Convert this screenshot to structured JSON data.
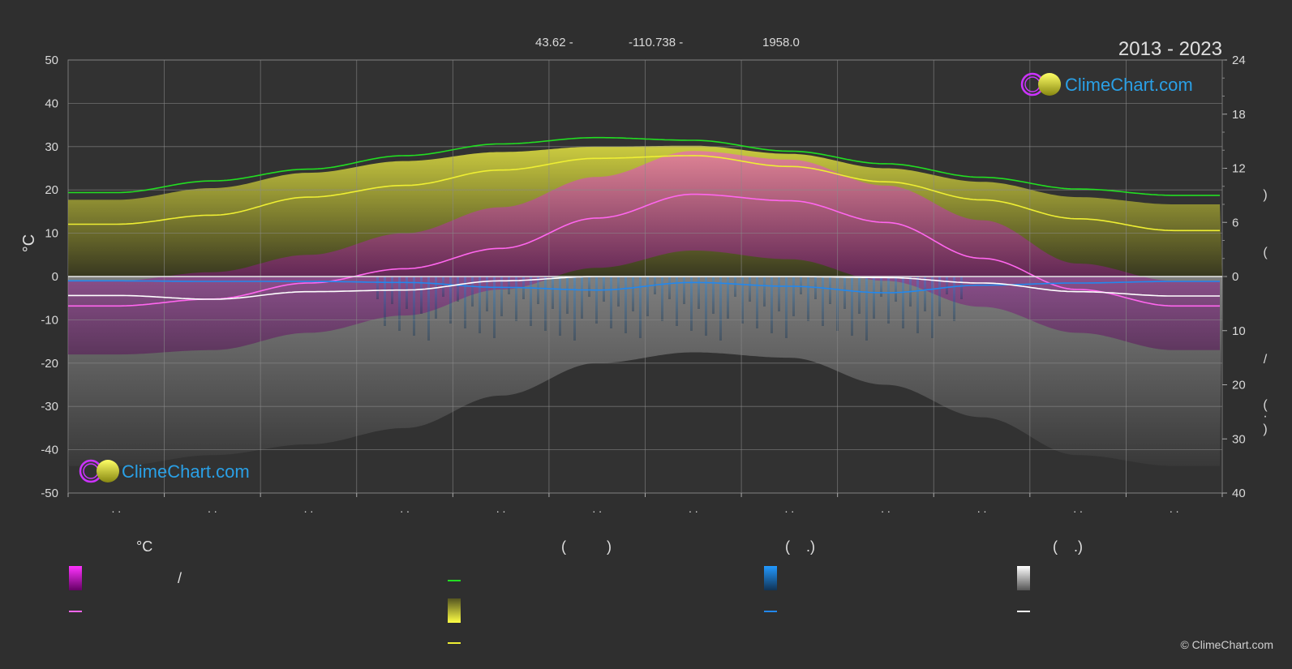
{
  "header": {
    "latitude": "43.62 -",
    "longitude": "-110.738 -",
    "elevation": "1958.0",
    "period": "2013 - 2023"
  },
  "brand": {
    "name": "ClimeChart.com",
    "copyright": "© ClimeChart.com"
  },
  "colors": {
    "background": "#2f2f2f",
    "daylight": "#22dd22",
    "sunshine": "#eeee33",
    "temp_mean": "#ff66ee",
    "precipitation": "#2288ee",
    "snow": "#ffffff",
    "temp_band": "#ee22ee",
    "sun_band": "#cccc22",
    "brand_text": "#2aa0e6"
  },
  "legend": {
    "temperature_head": "°C",
    "sun_head": "(          )",
    "rain_head": "(    .)",
    "snow_head": "(    .)",
    "slash_label": "/"
  },
  "chart_data": {
    "type": "line",
    "month_tick_labels": [
      ". .",
      ". .",
      ". .",
      ". .",
      ". .",
      ". .",
      ". .",
      ". .",
      ". .",
      ". .",
      ". .",
      ". ."
    ],
    "y_left": {
      "label": "°C",
      "range": [
        -50,
        50
      ],
      "ticks": [
        50,
        40,
        30,
        20,
        10,
        0,
        -10,
        -20,
        -30,
        -40,
        -50
      ]
    },
    "y_right_top": {
      "range": [
        0,
        24
      ],
      "ticks": [
        24,
        18,
        12,
        6,
        0
      ],
      "label_glyphs": [
        "(",
        ")"
      ]
    },
    "y_right_bottom": {
      "range": [
        0,
        40
      ],
      "ticks": [
        0,
        10,
        20,
        30,
        40
      ],
      "label_glyphs": [
        "/",
        "(",
        "·",
        ")"
      ]
    },
    "x_months": [
      1,
      2,
      3,
      4,
      5,
      6,
      7,
      8,
      9,
      10,
      11,
      12
    ],
    "series": [
      {
        "key": "daylight_hours",
        "axis": "right_top",
        "color": "#22dd22",
        "values": [
          9.3,
          10.6,
          11.9,
          13.4,
          14.7,
          15.4,
          15.1,
          13.9,
          12.5,
          11.0,
          9.7,
          9.0
        ]
      },
      {
        "key": "sunshine_hours",
        "axis": "right_top",
        "color": "#eeee33",
        "values": [
          5.8,
          6.8,
          8.8,
          10.1,
          11.8,
          13.1,
          13.4,
          12.2,
          10.5,
          8.5,
          6.4,
          5.1
        ]
      },
      {
        "key": "temp_mean",
        "axis": "left",
        "color": "#ff66ee",
        "values": [
          -6.8,
          -5.2,
          -1.5,
          1.8,
          6.5,
          13.5,
          19.0,
          17.5,
          12.5,
          4.2,
          -3.0,
          -6.8
        ]
      },
      {
        "key": "precipitation_mean",
        "axis": "right_bottom",
        "color": "#2288ee",
        "values": [
          0.8,
          0.9,
          0.9,
          1.1,
          2.0,
          2.5,
          1.1,
          1.8,
          3.0,
          1.6,
          1.2,
          0.9
        ]
      },
      {
        "key": "snow_mean",
        "axis": "right_bottom",
        "color": "#ffffff",
        "values": [
          3.5,
          4.2,
          2.8,
          2.5,
          0.8,
          0.0,
          0.0,
          0.0,
          0.2,
          1.2,
          2.8,
          3.6
        ]
      }
    ],
    "bands": {
      "temp_max": [
        -1,
        1,
        5,
        10,
        16,
        23,
        29,
        27,
        21,
        13,
        3,
        -1
      ],
      "temp_min": [
        -18,
        -17,
        -13,
        -9,
        -3,
        2,
        6,
        4,
        -1,
        -7,
        -13,
        -17
      ],
      "sunshine_band_hours": [
        8.5,
        9.8,
        11.5,
        12.8,
        13.8,
        14.4,
        14.5,
        13.6,
        12.0,
        10.5,
        8.8,
        8.0
      ],
      "precip_band_mm": [
        35,
        33,
        31,
        28,
        22,
        16,
        14,
        15,
        20,
        26,
        33,
        35
      ]
    }
  }
}
